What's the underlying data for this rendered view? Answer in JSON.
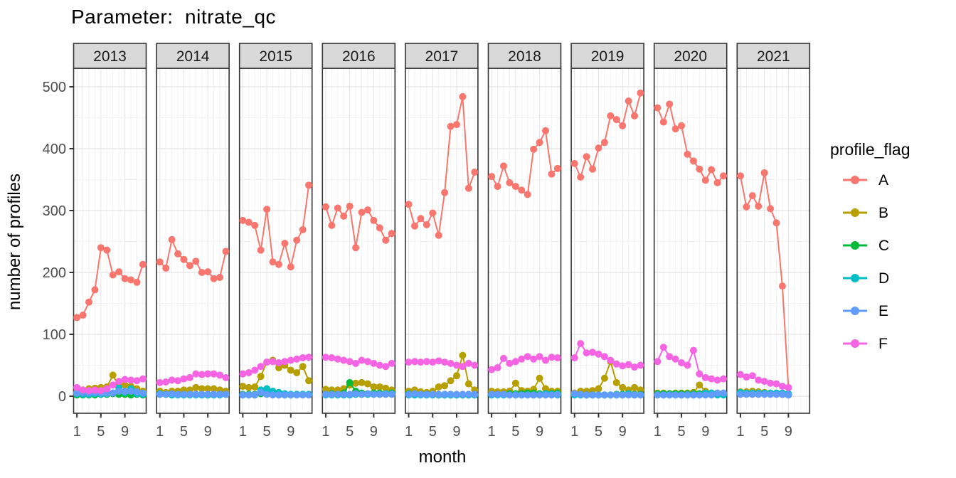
{
  "chart_data": {
    "type": "line",
    "title": "Parameter:  nitrate_qc",
    "xlabel": "month",
    "ylabel": "number of profiles",
    "facets": [
      "2013",
      "2014",
      "2015",
      "2016",
      "2017",
      "2018",
      "2019",
      "2020",
      "2021"
    ],
    "x_ticks": [
      1,
      5,
      9
    ],
    "y_ticks": [
      0,
      100,
      200,
      300,
      400,
      500
    ],
    "ylim": [
      0,
      500
    ],
    "xlim": [
      1,
      12
    ],
    "grid": true,
    "legend": {
      "title": "profile_flag",
      "position": "right"
    },
    "colors": {
      "A": "#F8766D",
      "B": "#B79F00",
      "C": "#00BA38",
      "D": "#00BFC4",
      "E": "#619CFF",
      "F": "#F564E3",
      "strip_fill": "#D9D9D9",
      "panel_border": "#333333",
      "grid_major": "#E4E4E4",
      "grid_minor": "#F2F2F2",
      "tick_text": "#4D4D4D"
    },
    "series": [
      {
        "name": "A",
        "color": "#F8766D",
        "values": {
          "2013": [
            127,
            131,
            152,
            172,
            240,
            236,
            196,
            201,
            190,
            188,
            184,
            213
          ],
          "2014": [
            217,
            207,
            253,
            230,
            221,
            211,
            218,
            200,
            201,
            190,
            192,
            234
          ],
          "2015": [
            284,
            281,
            276,
            236,
            302,
            217,
            213,
            247,
            209,
            252,
            269,
            341
          ],
          "2016": [
            306,
            276,
            304,
            291,
            307,
            240,
            297,
            301,
            284,
            272,
            252,
            263
          ],
          "2017": [
            310,
            275,
            287,
            277,
            296,
            260,
            329,
            436,
            439,
            484,
            336,
            362
          ],
          "2018": [
            355,
            339,
            372,
            345,
            339,
            333,
            326,
            399,
            410,
            429,
            359,
            368
          ],
          "2019": [
            376,
            354,
            387,
            367,
            401,
            410,
            453,
            447,
            437,
            477,
            453,
            490
          ],
          "2020": [
            466,
            443,
            472,
            432,
            437,
            391,
            380,
            367,
            349,
            366,
            345,
            356
          ],
          "2021": [
            356,
            306,
            324,
            307,
            361,
            303,
            280,
            178,
            14
          ]
        }
      },
      {
        "name": "B",
        "color": "#B79F00",
        "values": {
          "2013": [
            6,
            10,
            12,
            13,
            14,
            15,
            34,
            16,
            18,
            16,
            12,
            8
          ],
          "2014": [
            8,
            6,
            8,
            8,
            10,
            10,
            14,
            12,
            12,
            12,
            10,
            8
          ],
          "2015": [
            16,
            14,
            15,
            32,
            55,
            58,
            46,
            50,
            42,
            38,
            48,
            25
          ],
          "2016": [
            11,
            10,
            10,
            12,
            18,
            21,
            22,
            20,
            15,
            15,
            13,
            10
          ],
          "2017": [
            8,
            10,
            7,
            6,
            8,
            15,
            17,
            25,
            33,
            66,
            20,
            10
          ],
          "2018": [
            8,
            7,
            7,
            8,
            21,
            9,
            8,
            11,
            29,
            12,
            8,
            8
          ],
          "2019": [
            5,
            8,
            8,
            9,
            12,
            29,
            56,
            22,
            14,
            10,
            14,
            10
          ],
          "2020": [
            5,
            5,
            4,
            5,
            5,
            5,
            6,
            18,
            8,
            5,
            5,
            5
          ],
          "2021": [
            7,
            7,
            8,
            7,
            6,
            5,
            5,
            4,
            3
          ]
        }
      },
      {
        "name": "C",
        "color": "#00BA38",
        "values": {
          "2013": [
            2,
            2,
            2,
            2,
            3,
            3,
            4,
            3,
            3,
            2,
            3,
            2
          ],
          "2014": [
            3,
            3,
            3,
            3,
            3,
            3,
            3,
            3,
            2,
            3,
            3,
            3
          ],
          "2015": [
            3,
            3,
            3,
            4,
            4,
            3,
            2,
            2,
            2,
            3,
            3,
            3
          ],
          "2016": [
            3,
            4,
            3,
            5,
            22,
            8,
            5,
            4,
            5,
            5,
            4,
            5
          ],
          "2017": [
            4,
            3,
            3,
            3,
            3,
            2,
            2,
            2,
            2,
            2,
            2,
            2
          ],
          "2018": [
            3,
            3,
            3,
            4,
            4,
            4,
            5,
            5,
            4,
            4,
            4,
            5
          ],
          "2019": [
            3,
            3,
            2,
            2,
            2,
            2,
            2,
            3,
            3,
            3,
            3,
            3
          ],
          "2020": [
            4,
            4,
            4,
            4,
            4,
            4,
            4,
            4,
            4,
            4,
            4,
            4
          ],
          "2021": [
            5,
            4,
            4,
            4,
            4,
            4,
            4,
            3,
            2
          ]
        }
      },
      {
        "name": "D",
        "color": "#00BFC4",
        "values": {
          "2013": [
            4,
            3,
            3,
            4,
            3,
            4,
            5,
            14,
            6,
            12,
            4,
            3
          ],
          "2014": [
            4,
            3,
            2,
            2,
            2,
            2,
            2,
            2,
            2,
            2,
            2,
            3
          ],
          "2015": [
            2,
            2,
            2,
            10,
            12,
            8,
            6,
            4,
            3,
            3,
            3,
            3
          ],
          "2016": [
            2,
            2,
            2,
            2,
            2,
            3,
            3,
            3,
            3,
            3,
            4,
            4
          ],
          "2017": [
            2,
            2,
            2,
            2,
            2,
            2,
            2,
            2,
            2,
            2,
            2,
            2
          ],
          "2018": [
            2,
            2,
            2,
            2,
            2,
            2,
            2,
            2,
            2,
            4,
            3,
            2
          ],
          "2019": [
            2,
            2,
            2,
            2,
            2,
            2,
            2,
            2,
            2,
            4,
            2,
            2
          ],
          "2020": [
            2,
            2,
            2,
            2,
            2,
            2,
            2,
            2,
            5,
            5,
            2,
            2
          ],
          "2021": [
            6,
            5,
            5,
            5,
            5,
            5,
            5,
            5,
            4
          ]
        }
      },
      {
        "name": "E",
        "color": "#619CFF",
        "values": {
          "2013": [
            5,
            6,
            5,
            6,
            5,
            5,
            5,
            8,
            8,
            8,
            7,
            5
          ],
          "2014": [
            3,
            3,
            4,
            3,
            3,
            3,
            3,
            3,
            3,
            3,
            3,
            3
          ],
          "2015": [
            2,
            2,
            2,
            6,
            3,
            2,
            2,
            2,
            2,
            2,
            2,
            2
          ],
          "2016": [
            3,
            3,
            3,
            3,
            3,
            4,
            3,
            4,
            3,
            3,
            3,
            3
          ],
          "2017": [
            3,
            4,
            3,
            3,
            3,
            3,
            3,
            3,
            3,
            3,
            3,
            3
          ],
          "2018": [
            3,
            3,
            3,
            2,
            2,
            2,
            2,
            2,
            2,
            2,
            2,
            3
          ],
          "2019": [
            4,
            3,
            2,
            2,
            2,
            2,
            2,
            2,
            2,
            2,
            2,
            2
          ],
          "2020": [
            2,
            2,
            2,
            2,
            2,
            2,
            2,
            2,
            2,
            2,
            5,
            5
          ],
          "2021": [
            3,
            3,
            3,
            3,
            3,
            3,
            3,
            3,
            2
          ]
        }
      },
      {
        "name": "F",
        "color": "#F564E3",
        "values": {
          "2013": [
            14,
            10,
            9,
            10,
            9,
            12,
            18,
            24,
            27,
            26,
            25,
            28
          ],
          "2014": [
            22,
            23,
            26,
            25,
            28,
            30,
            36,
            35,
            36,
            36,
            34,
            30
          ],
          "2015": [
            36,
            38,
            42,
            48,
            55,
            56,
            54,
            56,
            58,
            60,
            62,
            63
          ],
          "2016": [
            63,
            62,
            60,
            58,
            56,
            53,
            58,
            56,
            53,
            50,
            48,
            53
          ],
          "2017": [
            55,
            56,
            55,
            56,
            55,
            57,
            55,
            53,
            50,
            48,
            53,
            50
          ],
          "2018": [
            43,
            46,
            61,
            53,
            56,
            60,
            64,
            60,
            64,
            58,
            63,
            62
          ],
          "2019": [
            62,
            85,
            70,
            71,
            68,
            64,
            58,
            52,
            49,
            51,
            47,
            50
          ],
          "2020": [
            56,
            79,
            64,
            60,
            54,
            50,
            74,
            36,
            30,
            28,
            26,
            28
          ],
          "2021": [
            35,
            31,
            33,
            26,
            24,
            21,
            20,
            16,
            14
          ]
        }
      }
    ]
  }
}
